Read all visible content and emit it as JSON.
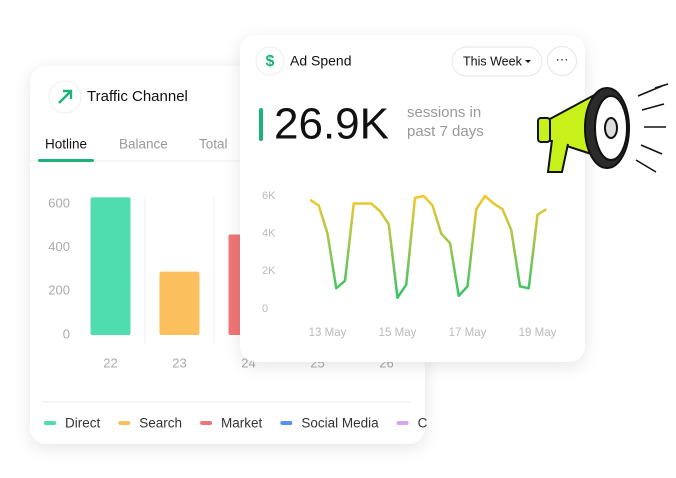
{
  "traffic_card": {
    "title": "Traffic Channel",
    "tabs": [
      "Hotline",
      "Balance",
      "Total"
    ]
  },
  "ad_card": {
    "title": "Ad Spend",
    "period": "This Week",
    "headline": "26.9K",
    "caption": [
      "sessions in",
      "past 7 days"
    ]
  },
  "chart_data": [
    {
      "type": "bar",
      "categories": [
        "22",
        "23",
        "24",
        "25",
        "26"
      ],
      "series": [
        {
          "name": "Direct",
          "color": "#4fdcae",
          "values": [
            630,
            null,
            null,
            null,
            null
          ]
        },
        {
          "name": "Search",
          "color": "#fbbf5e",
          "values": [
            null,
            290,
            null,
            null,
            null
          ]
        },
        {
          "name": "Market",
          "color": "#ef7676",
          "values": [
            null,
            null,
            460,
            null,
            null
          ]
        },
        {
          "name": "Social Media",
          "color": "#5a8ff0",
          "values": [
            null,
            null,
            null,
            null,
            null
          ]
        },
        {
          "name": "C",
          "color": "#d9a3f0",
          "values": [
            null,
            null,
            null,
            null,
            null
          ]
        }
      ],
      "ylim": [
        0,
        650
      ],
      "yticks": [
        0,
        200,
        400,
        600
      ]
    },
    {
      "type": "line",
      "categories": [
        null,
        null,
        "13 May",
        null,
        null,
        null,
        null,
        null,
        null,
        null,
        "15 May",
        null,
        null,
        null,
        null,
        null,
        null,
        null,
        "17 May",
        null,
        null,
        null,
        null,
        null,
        null,
        null,
        "19 May",
        null
      ],
      "values": [
        5800,
        5500,
        4000,
        1100,
        1500,
        5600,
        5600,
        5600,
        5200,
        4500,
        600,
        1300,
        5900,
        6000,
        5500,
        4000,
        3500,
        700,
        1200,
        5300,
        6000,
        5600,
        5300,
        4200,
        1200,
        1100,
        5000,
        5300
      ],
      "gradient": [
        "#f7c72c",
        "#2fc46a"
      ],
      "ylim": [
        0,
        6000
      ],
      "yticks": [
        {
          "value": 0,
          "label": "0"
        },
        {
          "value": 2000,
          "label": "2K"
        },
        {
          "value": 4000,
          "label": "4K"
        },
        {
          "value": 6000,
          "label": "6K"
        }
      ]
    }
  ]
}
